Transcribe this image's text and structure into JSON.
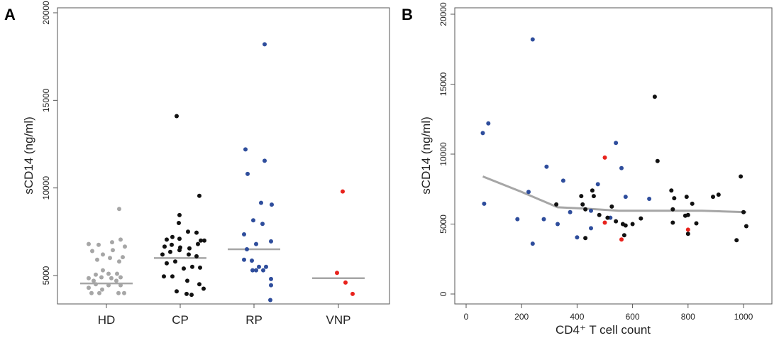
{
  "chart_data": [
    {
      "panel": "A",
      "type": "scatter",
      "ylabel": "sCD14 (ng/ml)",
      "xlabel": "",
      "ylim": [
        3500,
        20000
      ],
      "yticks": [
        5000,
        10000,
        15000,
        20000
      ],
      "categories": [
        "HD",
        "CP",
        "RP",
        "VNP"
      ],
      "colors": {
        "HD": "#a6a6a6",
        "CP": "#111111",
        "RP": "#2e4d9c",
        "VNP": "#e8221c"
      },
      "median_color": "#a6a6a6",
      "series": [
        {
          "category": "HD",
          "median": 4550,
          "points": [
            [
              -0.42,
              4000
            ],
            [
              -0.2,
              4000
            ],
            [
              -0.12,
              4200
            ],
            [
              0.34,
              4000
            ],
            [
              0.5,
              4000
            ],
            [
              -0.5,
              4300
            ],
            [
              -0.3,
              4500
            ],
            [
              0.06,
              4450
            ],
            [
              0.4,
              4450
            ],
            [
              -0.36,
              4700
            ],
            [
              0.28,
              4700
            ],
            [
              -0.5,
              4850
            ],
            [
              -0.14,
              4900
            ],
            [
              0.14,
              4850
            ],
            [
              0.4,
              4900
            ],
            [
              -0.3,
              5050
            ],
            [
              0.06,
              5100
            ],
            [
              0.3,
              5100
            ],
            [
              -0.1,
              5300
            ],
            [
              0.36,
              5800
            ],
            [
              -0.26,
              5900
            ],
            [
              0.1,
              6000
            ],
            [
              0.46,
              6050
            ],
            [
              -0.4,
              6400
            ],
            [
              -0.1,
              6200
            ],
            [
              0.18,
              6450
            ],
            [
              0.52,
              6650
            ],
            [
              -0.5,
              6800
            ],
            [
              -0.22,
              6750
            ],
            [
              0.16,
              6900
            ],
            [
              0.4,
              7050
            ],
            [
              0.36,
              8800
            ]
          ]
        },
        {
          "category": "CP",
          "median": 6000,
          "points": [
            [
              -0.1,
              14100
            ],
            [
              0.54,
              9550
            ],
            [
              -0.02,
              8450
            ],
            [
              -0.04,
              8000
            ],
            [
              -0.38,
              7050
            ],
            [
              -0.22,
              7200
            ],
            [
              -0.02,
              7100
            ],
            [
              0.22,
              7500
            ],
            [
              0.46,
              7450
            ],
            [
              0.58,
              7000
            ],
            [
              0.68,
              7000
            ],
            [
              -0.44,
              6650
            ],
            [
              -0.24,
              6750
            ],
            [
              0.0,
              6600
            ],
            [
              0.26,
              6550
            ],
            [
              0.5,
              6800
            ],
            [
              -0.5,
              6200
            ],
            [
              -0.28,
              6350
            ],
            [
              -0.02,
              6450
            ],
            [
              0.24,
              6200
            ],
            [
              0.46,
              6100
            ],
            [
              -0.38,
              5700
            ],
            [
              -0.14,
              5800
            ],
            [
              0.1,
              5400
            ],
            [
              0.34,
              5500
            ],
            [
              0.56,
              5450
            ],
            [
              -0.46,
              4950
            ],
            [
              -0.22,
              4950
            ],
            [
              0.2,
              4700
            ],
            [
              0.54,
              4500
            ],
            [
              -0.1,
              4100
            ],
            [
              0.18,
              3950
            ],
            [
              0.32,
              3900
            ],
            [
              0.66,
              4250
            ]
          ]
        },
        {
          "category": "RP",
          "median": 6500,
          "points": [
            [
              0.3,
              18200
            ],
            [
              -0.24,
              12200
            ],
            [
              0.3,
              11550
            ],
            [
              -0.18,
              10800
            ],
            [
              0.2,
              9150
            ],
            [
              0.5,
              9050
            ],
            [
              -0.02,
              8150
            ],
            [
              0.24,
              7950
            ],
            [
              -0.28,
              7350
            ],
            [
              0.48,
              6950
            ],
            [
              0.06,
              6800
            ],
            [
              -0.2,
              6500
            ],
            [
              -0.28,
              5900
            ],
            [
              -0.06,
              5850
            ],
            [
              0.14,
              5500
            ],
            [
              0.34,
              5500
            ],
            [
              -0.04,
              5300
            ],
            [
              0.06,
              5300
            ],
            [
              0.26,
              5300
            ],
            [
              0.48,
              4800
            ],
            [
              0.48,
              4450
            ],
            [
              0.46,
              3600
            ]
          ]
        },
        {
          "category": "VNP",
          "median": 4850,
          "points": [
            [
              0.12,
              9800
            ],
            [
              -0.04,
              5150
            ],
            [
              0.2,
              4600
            ],
            [
              0.4,
              3950
            ]
          ]
        }
      ]
    },
    {
      "panel": "B",
      "type": "scatter",
      "xlabel": "CD4⁺ T cell count",
      "ylabel": "sCD14 (ng/ml)",
      "xlim": [
        -60,
        1100
      ],
      "ylim": [
        -500,
        20600
      ],
      "xticks": [
        0,
        200,
        400,
        600,
        800,
        1000
      ],
      "yticks": [
        0,
        5000,
        10000,
        15000,
        20000
      ],
      "colors": {
        "CP": "#111111",
        "RP": "#2e4d9c",
        "VNP": "#e8221c"
      },
      "smooth_color": "#a6a6a6",
      "smooth_line": [
        [
          60,
          8400
        ],
        [
          200,
          7300
        ],
        [
          330,
          6200
        ],
        [
          430,
          6100
        ],
        [
          550,
          5950
        ],
        [
          700,
          5950
        ],
        [
          850,
          5950
        ],
        [
          1010,
          5850
        ]
      ],
      "series": [
        {
          "name": "RP",
          "points": [
            [
              60,
              11500
            ],
            [
              80,
              12200
            ],
            [
              65,
              6450
            ],
            [
              185,
              5350
            ],
            [
              225,
              7300
            ],
            [
              240,
              3600
            ],
            [
              240,
              18200
            ],
            [
              280,
              5350
            ],
            [
              290,
              9100
            ],
            [
              330,
              5000
            ],
            [
              350,
              8100
            ],
            [
              375,
              5850
            ],
            [
              400,
              4050
            ],
            [
              450,
              4700
            ],
            [
              450,
              5950
            ],
            [
              475,
              7850
            ],
            [
              520,
              5450
            ],
            [
              540,
              10800
            ],
            [
              560,
              9000
            ],
            [
              575,
              6950
            ],
            [
              660,
              6800
            ]
          ]
        },
        {
          "name": "CP",
          "points": [
            [
              325,
              6400
            ],
            [
              420,
              6400
            ],
            [
              430,
              6050
            ],
            [
              415,
              7000
            ],
            [
              430,
              4000
            ],
            [
              455,
              7400
            ],
            [
              460,
              7000
            ],
            [
              480,
              5650
            ],
            [
              510,
              5450
            ],
            [
              525,
              6250
            ],
            [
              540,
              5200
            ],
            [
              565,
              5000
            ],
            [
              570,
              4200
            ],
            [
              575,
              4900
            ],
            [
              600,
              5000
            ],
            [
              630,
              5400
            ],
            [
              680,
              14100
            ],
            [
              690,
              9500
            ],
            [
              740,
              7400
            ],
            [
              745,
              6050
            ],
            [
              750,
              6850
            ],
            [
              745,
              5100
            ],
            [
              790,
              5600
            ],
            [
              795,
              6950
            ],
            [
              800,
              4300
            ],
            [
              800,
              5650
            ],
            [
              815,
              6450
            ],
            [
              830,
              5050
            ],
            [
              890,
              6950
            ],
            [
              910,
              7100
            ],
            [
              975,
              3850
            ],
            [
              990,
              8400
            ],
            [
              1000,
              5850
            ],
            [
              1010,
              4850
            ]
          ]
        },
        {
          "name": "VNP",
          "points": [
            [
              500,
              9750
            ],
            [
              500,
              5100
            ],
            [
              560,
              3900
            ],
            [
              800,
              4600
            ]
          ]
        }
      ]
    }
  ]
}
